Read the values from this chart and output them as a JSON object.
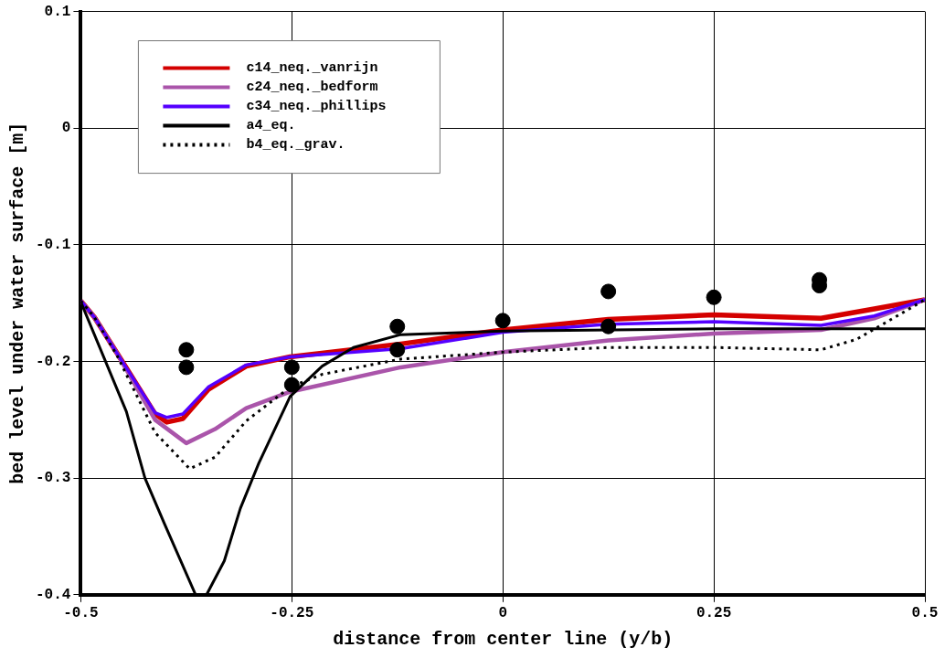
{
  "chart_data": {
    "type": "line",
    "xlabel": "distance from center line (y/b)",
    "ylabel": "bed level under water surface [m]",
    "xlim": [
      -0.5,
      0.5
    ],
    "xticks": [
      -0.5,
      -0.25,
      0,
      0.25,
      0.5
    ],
    "ylim": [
      -0.4,
      0.1
    ],
    "yticks": [
      0.1,
      0,
      -0.1,
      -0.2,
      -0.3,
      -0.4
    ],
    "grid": true,
    "legend": "top left",
    "marker": "none",
    "series": [
      {
        "name": "c14_neq._vanrijn",
        "color": "#d40000",
        "line_style": "solid",
        "x": [
          -0.5,
          -0.484,
          -0.457,
          -0.412,
          -0.398,
          -0.379,
          -0.349,
          -0.304,
          -0.252,
          -0.121,
          0,
          0.125,
          0.25,
          0.377,
          0.44,
          0.5
        ],
        "values": [
          -0.148,
          -0.162,
          -0.193,
          -0.245,
          -0.252,
          -0.249,
          -0.224,
          -0.204,
          -0.196,
          -0.185,
          -0.173,
          -0.164,
          -0.16,
          -0.163,
          -0.155,
          -0.147
        ]
      },
      {
        "name": "c24_neq._bedform",
        "color": "#aa55aa",
        "line_style": "solid",
        "x": [
          -0.5,
          -0.484,
          -0.457,
          -0.412,
          -0.375,
          -0.341,
          -0.304,
          -0.252,
          -0.121,
          0,
          0.125,
          0.25,
          0.377,
          0.44,
          0.5
        ],
        "values": [
          -0.148,
          -0.162,
          -0.193,
          -0.25,
          -0.27,
          -0.258,
          -0.24,
          -0.226,
          -0.205,
          -0.192,
          -0.182,
          -0.176,
          -0.173,
          -0.163,
          -0.147
        ]
      },
      {
        "name": "c34_neq._phillips",
        "color": "#5500ff",
        "line_style": "solid",
        "x": [
          -0.5,
          -0.484,
          -0.457,
          -0.412,
          -0.398,
          -0.379,
          -0.349,
          -0.304,
          -0.252,
          -0.121,
          0,
          0.125,
          0.25,
          0.377,
          0.44,
          0.5
        ],
        "values": [
          -0.148,
          -0.162,
          -0.193,
          -0.244,
          -0.248,
          -0.245,
          -0.222,
          -0.203,
          -0.196,
          -0.189,
          -0.175,
          -0.168,
          -0.166,
          -0.169,
          -0.161,
          -0.147
        ]
      },
      {
        "name": "a4_eq.",
        "color": "#000000",
        "line_style": "solid",
        "x": [
          -0.5,
          -0.446,
          -0.424,
          -0.401,
          -0.364,
          -0.357,
          -0.351,
          -0.33,
          -0.311,
          -0.289,
          -0.252,
          -0.214,
          -0.177,
          -0.121,
          0,
          0.25,
          0.5
        ],
        "values": [
          -0.149,
          -0.243,
          -0.3,
          -0.339,
          -0.4,
          null,
          -0.4,
          -0.371,
          -0.326,
          -0.287,
          -0.23,
          -0.204,
          -0.188,
          -0.177,
          -0.174,
          -0.172,
          -0.172
        ]
      },
      {
        "name": "b4_eq._grav.",
        "color": "#000000",
        "line_style": "dotted",
        "x": [
          -0.5,
          -0.484,
          -0.457,
          -0.412,
          -0.371,
          -0.341,
          -0.304,
          -0.252,
          -0.214,
          -0.121,
          0,
          0.125,
          0.25,
          0.377,
          0.419,
          0.46,
          0.5
        ],
        "values": [
          -0.148,
          -0.162,
          -0.195,
          -0.261,
          -0.292,
          -0.282,
          -0.251,
          -0.222,
          -0.211,
          -0.198,
          -0.192,
          -0.188,
          -0.188,
          -0.19,
          -0.181,
          -0.164,
          -0.147
        ]
      },
      {
        "type": "scatter",
        "color": "#000000",
        "marker": "circle",
        "x": [
          -0.375,
          -0.375,
          -0.25,
          -0.25,
          -0.125,
          -0.125,
          0,
          0.125,
          0.125,
          0.25,
          0.375,
          0.375
        ],
        "values": [
          -0.19,
          -0.205,
          -0.205,
          -0.22,
          -0.17,
          -0.19,
          -0.165,
          -0.14,
          -0.17,
          -0.145,
          -0.13,
          -0.135
        ]
      }
    ]
  }
}
